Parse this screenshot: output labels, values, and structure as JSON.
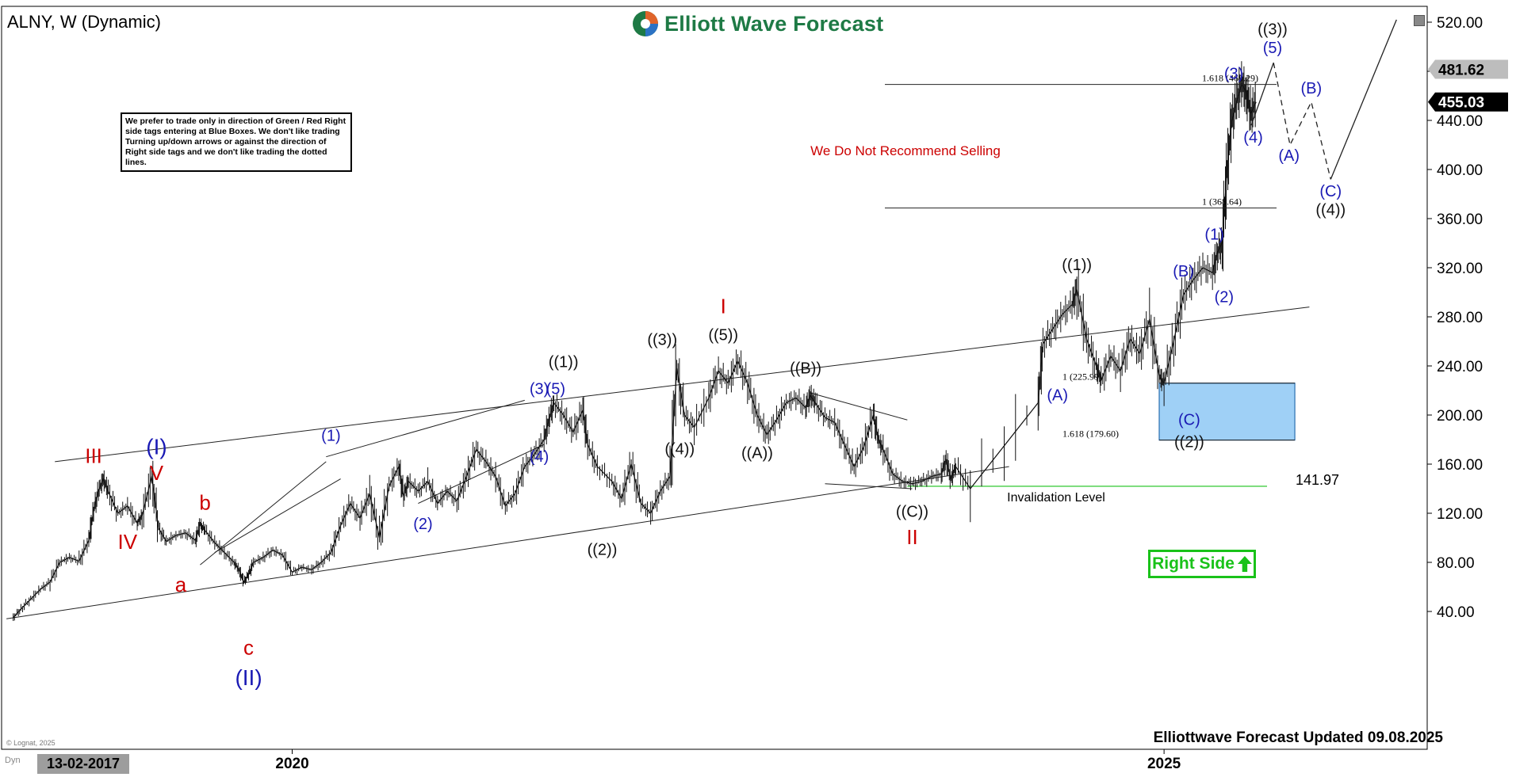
{
  "chart": {
    "title": "ALNY, W (Dynamic)",
    "brand": "Elliott Wave Forecast",
    "notice": "We prefer to trade only in direction of Green / Red Right side tags entering at Blue Boxes. We don't like trading Turning up/down arrows or against the direction of Right side tags and we don't like trading the dotted lines.",
    "recommendation": "We Do Not Recommend Selling",
    "right_side_label": "Right Side",
    "invalidation_label": "Invalidation Level",
    "invalidation_value": "141.97",
    "footer": "Elliottwave Forecast Updated 09.08.2025",
    "start_date": "13-02-2017",
    "dyn_label": "Dyn",
    "copyright": "© Lognat, 2025"
  },
  "chart_data": {
    "type": "line",
    "title": "ALNY, W (Dynamic)",
    "xlabel": "",
    "ylabel": "",
    "x_ticks": [
      "2020",
      "2025"
    ],
    "y_ticks": [
      "520.00",
      "480.00",
      "440.00",
      "400.00",
      "360.00",
      "320.00",
      "280.00",
      "240.00",
      "200.00",
      "160.00",
      "120.00",
      "80.00",
      "40.00"
    ],
    "ylim": [
      30,
      530
    ],
    "price_tags": [
      {
        "label": "481.62",
        "value": 481.62,
        "color": "#bdbdbd",
        "text_color": "#000000"
      },
      {
        "label": "455.03",
        "value": 455.03,
        "color": "#000000",
        "text_color": "#ffffff"
      }
    ],
    "series": [
      {
        "values": [
          [
            2017.12,
            35
          ],
          [
            2017.2,
            42
          ],
          [
            2017.3,
            50
          ],
          [
            2017.4,
            58
          ],
          [
            2017.5,
            64
          ],
          [
            2017.6,
            80
          ],
          [
            2017.7,
            84
          ],
          [
            2017.8,
            81
          ],
          [
            2017.9,
            98
          ],
          [
            2017.95,
            122
          ],
          [
            2018.0,
            138
          ],
          [
            2018.05,
            148
          ],
          [
            2018.1,
            138
          ],
          [
            2018.2,
            120
          ],
          [
            2018.3,
            126
          ],
          [
            2018.4,
            112
          ],
          [
            2018.45,
            118
          ],
          [
            2018.55,
            150
          ],
          [
            2018.62,
            108
          ],
          [
            2018.7,
            97
          ],
          [
            2018.8,
            102
          ],
          [
            2018.9,
            104
          ],
          [
            2019.0,
            98
          ],
          [
            2019.05,
            111
          ],
          [
            2019.1,
            106
          ],
          [
            2019.2,
            96
          ],
          [
            2019.3,
            88
          ],
          [
            2019.4,
            80
          ],
          [
            2019.45,
            74
          ],
          [
            2019.5,
            64
          ],
          [
            2019.55,
            70
          ],
          [
            2019.6,
            80
          ],
          [
            2019.7,
            84
          ],
          [
            2019.8,
            90
          ],
          [
            2019.9,
            86
          ],
          [
            2020.0,
            72
          ],
          [
            2020.1,
            76
          ],
          [
            2020.2,
            74
          ],
          [
            2020.3,
            80
          ],
          [
            2020.4,
            88
          ],
          [
            2020.5,
            110
          ],
          [
            2020.6,
            128
          ],
          [
            2020.7,
            116
          ],
          [
            2020.8,
            136
          ],
          [
            2020.9,
            100
          ],
          [
            2021.0,
            142
          ],
          [
            2021.1,
            158
          ],
          [
            2021.15,
            134
          ],
          [
            2021.2,
            146
          ],
          [
            2021.3,
            138
          ],
          [
            2021.4,
            146
          ],
          [
            2021.5,
            128
          ],
          [
            2021.6,
            138
          ],
          [
            2021.7,
            130
          ],
          [
            2021.8,
            150
          ],
          [
            2021.9,
            172
          ],
          [
            2022.0,
            162
          ],
          [
            2022.1,
            150
          ],
          [
            2022.2,
            126
          ],
          [
            2022.3,
            136
          ],
          [
            2022.4,
            158
          ],
          [
            2022.5,
            168
          ],
          [
            2022.6,
            180
          ],
          [
            2022.65,
            196
          ],
          [
            2022.7,
            210
          ],
          [
            2022.8,
            200
          ],
          [
            2022.9,
            186
          ],
          [
            2023.0,
            204
          ],
          [
            2023.05,
            176
          ],
          [
            2023.15,
            158
          ],
          [
            2023.3,
            146
          ],
          [
            2023.4,
            132
          ],
          [
            2023.5,
            160
          ],
          [
            2023.6,
            128
          ],
          [
            2023.7,
            120
          ],
          [
            2023.8,
            138
          ],
          [
            2023.9,
            150
          ],
          [
            2023.97,
            238
          ],
          [
            2024.05,
            200
          ],
          [
            2024.15,
            190
          ],
          [
            2024.3,
            214
          ],
          [
            2024.4,
            236
          ],
          [
            2024.5,
            226
          ],
          [
            2024.6,
            244
          ],
          [
            2024.7,
            226
          ],
          [
            2024.8,
            200
          ],
          [
            2024.9,
            184
          ],
          [
            2025.0,
            196
          ],
          [
            2025.1,
            210
          ],
          [
            2025.2,
            214
          ],
          [
            2025.3,
            206
          ],
          [
            2025.35,
            216
          ],
          [
            2025.4,
            210
          ],
          [
            2025.5,
            198
          ],
          [
            2025.6,
            194
          ],
          [
            2025.7,
            176
          ],
          [
            2025.8,
            158
          ],
          [
            2025.9,
            174
          ],
          [
            2026.0,
            200
          ],
          [
            2026.05,
            180
          ],
          [
            2026.1,
            172
          ],
          [
            2026.2,
            152
          ],
          [
            2026.3,
            146
          ],
          [
            2026.4,
            144
          ],
          [
            2026.5,
            146
          ],
          [
            2026.6,
            150
          ],
          [
            2026.7,
            152
          ],
          [
            2026.75,
            164
          ],
          [
            2026.8,
            148
          ],
          [
            2026.85,
            158
          ],
          [
            2027.0,
            140
          ],
          [
            2027.7,
            210
          ],
          [
            2027.75,
            258
          ],
          [
            2027.85,
            270
          ],
          [
            2027.95,
            282
          ],
          [
            2028.05,
            290
          ],
          [
            2028.1,
            302
          ],
          [
            2028.2,
            262
          ],
          [
            2028.3,
            240
          ],
          [
            2028.35,
            228
          ],
          [
            2028.45,
            248
          ],
          [
            2028.55,
            236
          ],
          [
            2028.65,
            262
          ],
          [
            2028.75,
            250
          ],
          [
            2028.85,
            278
          ],
          [
            2028.95,
            232
          ],
          [
            2029.0,
            226
          ],
          [
            2029.1,
            260
          ],
          [
            2029.2,
            298
          ],
          [
            2029.3,
            310
          ],
          [
            2029.4,
            320
          ],
          [
            2029.5,
            316
          ],
          [
            2029.55,
            332
          ],
          [
            2029.6,
            340
          ],
          [
            2029.65,
            400
          ],
          [
            2029.7,
            440
          ],
          [
            2029.75,
            456
          ],
          [
            2029.8,
            470
          ],
          [
            2029.85,
            462
          ],
          [
            2029.9,
            446
          ],
          [
            2029.95,
            455
          ]
        ]
      }
    ],
    "channels": [
      {
        "style": "solid",
        "from": [
          2017.55,
          162
        ],
        "to": [
          2030.5,
          288
        ]
      },
      {
        "style": "solid",
        "from": [
          2017.05,
          34
        ],
        "to": [
          2027.4,
          158
        ]
      },
      {
        "style": "solid",
        "from": [
          2019.05,
          78
        ],
        "to": [
          2020.35,
          162
        ]
      },
      {
        "style": "solid",
        "from": [
          2019.2,
          88
        ],
        "to": [
          2020.5,
          148
        ]
      },
      {
        "style": "solid",
        "from": [
          2020.35,
          166
        ],
        "to": [
          2022.4,
          212
        ]
      },
      {
        "style": "solid",
        "from": [
          2021.3,
          128
        ],
        "to": [
          2022.6,
          176
        ]
      },
      {
        "style": "solid",
        "from": [
          2025.35,
          218
        ],
        "to": [
          2026.35,
          196
        ]
      },
      {
        "style": "solid",
        "from": [
          2025.5,
          144
        ],
        "to": [
          2026.4,
          140
        ]
      }
    ],
    "fib_levels": [
      {
        "label": "1.618 (469.29)",
        "value": 469.29
      },
      {
        "label": "1 (368.64)",
        "value": 368.64
      },
      {
        "label": "1 (225.99)",
        "value": 225.99
      },
      {
        "label": "1.618 (179.60)",
        "value": 179.6
      }
    ],
    "blue_box": {
      "y_top": 225.99,
      "y_bottom": 179.6
    },
    "invalidation_level": 141.97,
    "projection": {
      "solid": [
        [
          2029.9,
          436
        ],
        [
          2030.13,
          487
        ]
      ],
      "dashed": [
        [
          2030.13,
          487
        ],
        [
          2030.3,
          420
        ],
        [
          2030.52,
          455
        ],
        [
          2030.72,
          392
        ]
      ],
      "solid_up": [
        [
          2030.72,
          392
        ],
        [
          2031.4,
          522
        ]
      ]
    },
    "wave_labels": [
      {
        "text": "(I)",
        "x": 2018.6,
        "y": 168,
        "color": "#1a1ab4",
        "size": 28
      },
      {
        "text": "V",
        "x": 2018.6,
        "y": 147,
        "color": "#cc0000",
        "size": 26
      },
      {
        "text": "III",
        "x": 2017.95,
        "y": 161,
        "color": "#cc0000",
        "size": 26
      },
      {
        "text": "IV",
        "x": 2018.3,
        "y": 91,
        "color": "#cc0000",
        "size": 26
      },
      {
        "text": "a",
        "x": 2018.85,
        "y": 56,
        "color": "#cc0000",
        "size": 26
      },
      {
        "text": "b",
        "x": 2019.1,
        "y": 123,
        "color": "#cc0000",
        "size": 26
      },
      {
        "text": "c",
        "x": 2019.55,
        "y": 5,
        "color": "#cc0000",
        "size": 26
      },
      {
        "text": "(II)",
        "x": 2019.55,
        "y": -20,
        "color": "#1a1ab4",
        "size": 28
      },
      {
        "text": "(1)",
        "x": 2020.4,
        "y": 179,
        "color": "#1a1ab4",
        "size": 20
      },
      {
        "text": "(2)",
        "x": 2021.35,
        "y": 107,
        "color": "#1a1ab4",
        "size": 20
      },
      {
        "text": "(3)",
        "x": 2022.55,
        "y": 217,
        "color": "#1a1ab4",
        "size": 20
      },
      {
        "text": "(5)",
        "x": 2022.72,
        "y": 217,
        "color": "#1a1ab4",
        "size": 20
      },
      {
        "text": "((1))",
        "x": 2022.8,
        "y": 239,
        "color": "#111111",
        "size": 20
      },
      {
        "text": "(4)",
        "x": 2022.55,
        "y": 162,
        "color": "#1a1ab4",
        "size": 20
      },
      {
        "text": "((2))",
        "x": 2023.2,
        "y": 86,
        "color": "#111111",
        "size": 20
      },
      {
        "text": "((3))",
        "x": 2023.82,
        "y": 257,
        "color": "#111111",
        "size": 20
      },
      {
        "text": "((4))",
        "x": 2024.0,
        "y": 168,
        "color": "#111111",
        "size": 20
      },
      {
        "text": "((5))",
        "x": 2024.45,
        "y": 261,
        "color": "#111111",
        "size": 20
      },
      {
        "text": "I",
        "x": 2024.45,
        "y": 283,
        "color": "#cc0000",
        "size": 26
      },
      {
        "text": "((A))",
        "x": 2024.8,
        "y": 165,
        "color": "#111111",
        "size": 20
      },
      {
        "text": "((B))",
        "x": 2025.3,
        "y": 234,
        "color": "#111111",
        "size": 20
      },
      {
        "text": "((C))",
        "x": 2026.4,
        "y": 117,
        "color": "#111111",
        "size": 20
      },
      {
        "text": "II",
        "x": 2026.4,
        "y": 95,
        "color": "#cc0000",
        "size": 26
      },
      {
        "text": "(A)",
        "x": 2027.9,
        "y": 212,
        "color": "#1a1ab4",
        "size": 20
      },
      {
        "text": "((1))",
        "x": 2028.1,
        "y": 318,
        "color": "#111111",
        "size": 20
      },
      {
        "text": "(B)",
        "x": 2029.2,
        "y": 313,
        "color": "#1a1ab4",
        "size": 20
      },
      {
        "text": "(C)",
        "x": 2029.26,
        "y": 192,
        "color": "#1a1ab4",
        "size": 20
      },
      {
        "text": "((2))",
        "x": 2029.26,
        "y": 174,
        "color": "#111111",
        "size": 20
      },
      {
        "text": "(1)",
        "x": 2029.52,
        "y": 343,
        "color": "#1a1ab4",
        "size": 20
      },
      {
        "text": "(2)",
        "x": 2029.62,
        "y": 292,
        "color": "#1a1ab4",
        "size": 20
      },
      {
        "text": "(3)",
        "x": 2029.72,
        "y": 474,
        "color": "#1a1ab4",
        "size": 20
      },
      {
        "text": "(4)",
        "x": 2029.92,
        "y": 422,
        "color": "#1a1ab4",
        "size": 20
      },
      {
        "text": "(5)",
        "x": 2030.12,
        "y": 495,
        "color": "#1a1ab4",
        "size": 20
      },
      {
        "text": "((3))",
        "x": 2030.12,
        "y": 510,
        "color": "#111111",
        "size": 20
      },
      {
        "text": "(A)",
        "x": 2030.29,
        "y": 407,
        "color": "#1a1ab4",
        "size": 20
      },
      {
        "text": "(B)",
        "x": 2030.52,
        "y": 462,
        "color": "#1a1ab4",
        "size": 20
      },
      {
        "text": "(C)",
        "x": 2030.72,
        "y": 378,
        "color": "#1a1ab4",
        "size": 20
      },
      {
        "text": "((4))",
        "x": 2030.72,
        "y": 363,
        "color": "#111111",
        "size": 20
      }
    ]
  }
}
